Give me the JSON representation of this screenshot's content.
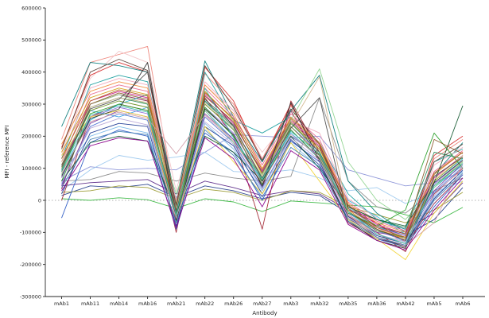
{
  "figure": {
    "background": "#ffffff"
  },
  "chart_data": {
    "type": "line",
    "title": "",
    "xlabel": "Antibody",
    "ylabel": "MFI - reference MFI",
    "legend": "none",
    "grid": false,
    "axis_color": "#262626",
    "zero_line": {
      "value": 0,
      "style": "dotted",
      "color": "#999999"
    },
    "ylim": [
      -300000,
      600000
    ],
    "ytick_step": 100000,
    "yticks": [
      -300000,
      -200000,
      -100000,
      0,
      100000,
      200000,
      300000,
      400000,
      500000,
      600000
    ],
    "categories": [
      "mAb1",
      "mAb11",
      "mAb14",
      "mAb16",
      "mAb21",
      "mAb22",
      "mAb26",
      "mAb27",
      "mAb3",
      "mAb32",
      "mAb35",
      "mAb36",
      "mAb42",
      "mAb5",
      "mAb6"
    ],
    "series": [
      {
        "color": "#3cb843",
        "values": [
          5000,
          0,
          8000,
          2000,
          -25000,
          5000,
          -5000,
          -35000,
          -2000,
          -8000,
          -15000,
          -20000,
          -45000,
          -70000,
          -22000
        ]
      },
      {
        "color": "#8b94d8",
        "values": [
          60000,
          105000,
          95000,
          100000,
          95000,
          150000,
          205000,
          200000,
          195000,
          200000,
          95000,
          70000,
          45000,
          55000,
          90000
        ]
      },
      {
        "color": "#9cc8ee",
        "values": [
          30000,
          95000,
          140000,
          125000,
          135000,
          150000,
          90000,
          85000,
          95000,
          70000,
          30000,
          40000,
          -10000,
          25000,
          60000
        ]
      },
      {
        "color": "#8a8a8a",
        "values": [
          60000,
          65000,
          90000,
          85000,
          60000,
          85000,
          70000,
          60000,
          75000,
          320000,
          60000,
          -20000,
          -40000,
          30000,
          70000
        ]
      },
      {
        "color": "#5e2d8a",
        "values": [
          45000,
          55000,
          60000,
          65000,
          20000,
          60000,
          40000,
          15000,
          30000,
          20000,
          -30000,
          -60000,
          -90000,
          -40000,
          55000
        ]
      },
      {
        "color": "#27408b",
        "values": [
          15000,
          45000,
          40000,
          50000,
          10000,
          45000,
          30000,
          5000,
          25000,
          15000,
          -40000,
          -80000,
          -110000,
          -60000,
          40000
        ]
      },
      {
        "color": "#9a9a30",
        "values": [
          25000,
          30000,
          45000,
          40000,
          5000,
          35000,
          25000,
          0,
          30000,
          25000,
          -20000,
          -45000,
          -70000,
          -30000,
          25000
        ]
      },
      {
        "color": "#ee8378",
        "values": [
          190000,
          430000,
          455000,
          480000,
          -20000,
          395000,
          300000,
          130000,
          295000,
          150000,
          -40000,
          -85000,
          -120000,
          130000,
          190000
        ]
      },
      {
        "color": "#f2c4c8",
        "values": [
          150000,
          380000,
          465000,
          430000,
          30000,
          360000,
          280000,
          150000,
          260000,
          120000,
          -60000,
          -100000,
          -150000,
          90000,
          150000
        ]
      },
      {
        "color": "#d62f2f",
        "values": [
          165000,
          390000,
          430000,
          400000,
          -60000,
          415000,
          310000,
          120000,
          300000,
          140000,
          -30000,
          -70000,
          -130000,
          140000,
          200000
        ]
      },
      {
        "color": "#a22633",
        "values": [
          0,
          260000,
          300000,
          280000,
          -100000,
          320000,
          200000,
          -90000,
          310000,
          150000,
          -50000,
          -100000,
          -160000,
          20000,
          100000
        ]
      },
      {
        "color": "#8b1a4a",
        "values": [
          35000,
          300000,
          330000,
          310000,
          -70000,
          340000,
          230000,
          40000,
          280000,
          120000,
          -70000,
          -120000,
          -140000,
          -10000,
          80000
        ]
      },
      {
        "color": "#0e7d7d",
        "values": [
          230000,
          430000,
          420000,
          400000,
          0,
          435000,
          260000,
          120000,
          280000,
          390000,
          60000,
          -40000,
          -100000,
          80000,
          180000
        ]
      },
      {
        "color": "#1fa0a0",
        "values": [
          130000,
          360000,
          390000,
          370000,
          -30000,
          400000,
          250000,
          210000,
          260000,
          180000,
          20000,
          -60000,
          -90000,
          120000,
          160000
        ]
      },
      {
        "color": "#28b8d8",
        "values": [
          90000,
          250000,
          300000,
          330000,
          -20000,
          310000,
          220000,
          90000,
          240000,
          160000,
          0,
          -50000,
          -105000,
          60000,
          130000
        ]
      },
      {
        "color": "#3da5e0",
        "values": [
          110000,
          280000,
          260000,
          290000,
          -50000,
          280000,
          190000,
          60000,
          210000,
          130000,
          -20000,
          -80000,
          -120000,
          40000,
          110000
        ]
      },
      {
        "color": "#7ab8e8",
        "values": [
          80000,
          200000,
          230000,
          210000,
          -40000,
          240000,
          160000,
          30000,
          180000,
          100000,
          -60000,
          -90000,
          -130000,
          10000,
          90000
        ]
      },
      {
        "color": "#2e5cc5",
        "values": [
          -55000,
          180000,
          220000,
          200000,
          -90000,
          210000,
          150000,
          0,
          185000,
          120000,
          -60000,
          -120000,
          -145000,
          -20000,
          80000
        ]
      },
      {
        "color": "#4f74d2",
        "values": [
          50000,
          230000,
          270000,
          250000,
          -60000,
          260000,
          180000,
          40000,
          200000,
          140000,
          -40000,
          -95000,
          -125000,
          25000,
          105000
        ]
      },
      {
        "color": "#1f3a93",
        "values": [
          20000,
          210000,
          240000,
          230000,
          -80000,
          230000,
          170000,
          20000,
          190000,
          110000,
          -50000,
          -110000,
          -135000,
          5000,
          95000
        ]
      },
      {
        "color": "#7b3fa0",
        "values": [
          45000,
          240000,
          280000,
          260000,
          -50000,
          270000,
          190000,
          50000,
          220000,
          130000,
          -45000,
          -100000,
          -115000,
          30000,
          115000
        ]
      },
      {
        "color": "#9370db",
        "values": [
          70000,
          260000,
          290000,
          270000,
          -30000,
          290000,
          210000,
          70000,
          230000,
          150000,
          -25000,
          -85000,
          -110000,
          50000,
          125000
        ]
      },
      {
        "color": "#c71585",
        "values": [
          95000,
          310000,
          340000,
          320000,
          -40000,
          330000,
          240000,
          90000,
          250000,
          170000,
          -15000,
          -75000,
          -105000,
          70000,
          140000
        ]
      },
      {
        "color": "#e86a92",
        "values": [
          120000,
          330000,
          360000,
          340000,
          -20000,
          350000,
          260000,
          110000,
          270000,
          190000,
          -5000,
          -65000,
          -95000,
          90000,
          155000
        ]
      },
      {
        "color": "#f0a8bc",
        "values": [
          140000,
          350000,
          380000,
          360000,
          0,
          370000,
          280000,
          130000,
          250000,
          210000,
          5000,
          -55000,
          -150000,
          110000,
          165000
        ]
      },
      {
        "color": "#ef8c3b",
        "values": [
          175000,
          340000,
          370000,
          350000,
          -10000,
          360000,
          270000,
          100000,
          260000,
          180000,
          -10000,
          -70000,
          -100000,
          80000,
          150000
        ]
      },
      {
        "color": "#d4a017",
        "values": [
          150000,
          320000,
          350000,
          330000,
          -30000,
          340000,
          250000,
          80000,
          240000,
          160000,
          -30000,
          -90000,
          -120000,
          60000,
          135000
        ]
      },
      {
        "color": "#f2d53c",
        "values": [
          140000,
          260000,
          280000,
          260000,
          -60000,
          230000,
          120000,
          20000,
          180000,
          60000,
          -60000,
          -120000,
          -185000,
          -40000,
          60000
        ]
      },
      {
        "color": "#6b8e23",
        "values": [
          100000,
          280000,
          310000,
          290000,
          -40000,
          300000,
          220000,
          60000,
          230000,
          140000,
          -35000,
          -95000,
          -115000,
          45000,
          120000
        ]
      },
      {
        "color": "#8fd48f",
        "values": [
          80000,
          300000,
          330000,
          300000,
          20000,
          280000,
          180000,
          80000,
          250000,
          410000,
          120000,
          0,
          -60000,
          40000,
          120000
        ]
      },
      {
        "color": "#2ca02c",
        "values": [
          60000,
          270000,
          300000,
          280000,
          -50000,
          290000,
          200000,
          50000,
          220000,
          130000,
          -40000,
          -80000,
          -30000,
          210000,
          100000
        ]
      },
      {
        "color": "#2e8b57",
        "values": [
          90000,
          290000,
          320000,
          300000,
          -20000,
          310000,
          230000,
          70000,
          240000,
          150000,
          -20000,
          -60000,
          -85000,
          150000,
          130000
        ]
      },
      {
        "color": "#145a32",
        "values": [
          60000,
          180000,
          200000,
          185000,
          -40000,
          200000,
          150000,
          60000,
          200000,
          100000,
          -20000,
          -60000,
          -80000,
          55000,
          295000
        ]
      },
      {
        "color": "#8b5a2b",
        "values": [
          110000,
          300000,
          335000,
          315000,
          -30000,
          325000,
          245000,
          85000,
          245000,
          165000,
          -25000,
          -80000,
          -105000,
          190000,
          145000
        ]
      },
      {
        "color": "#5d4037",
        "values": [
          160000,
          400000,
          440000,
          405000,
          -15000,
          420000,
          290000,
          125000,
          285000,
          175000,
          -35000,
          -90000,
          -125000,
          120000,
          175000
        ]
      },
      {
        "color": "#b5651d",
        "values": [
          130000,
          310000,
          345000,
          325000,
          -45000,
          335000,
          255000,
          95000,
          255000,
          175000,
          -15000,
          -85000,
          -115000,
          85000,
          150000
        ]
      },
      {
        "color": "#d2b48c",
        "values": [
          120000,
          290000,
          320000,
          305000,
          -25000,
          305000,
          225000,
          75000,
          235000,
          385000,
          -45000,
          -105000,
          -135000,
          65000,
          140000
        ]
      },
      {
        "color": "#4d4d4d",
        "values": [
          105000,
          285000,
          315000,
          400000,
          -35000,
          315000,
          235000,
          65000,
          225000,
          320000,
          -55000,
          -115000,
          -145000,
          75000,
          135000
        ]
      },
      {
        "color": "#2f2f2f",
        "values": [
          75000,
          255000,
          285000,
          430000,
          -65000,
          285000,
          205000,
          45000,
          305000,
          125000,
          -65000,
          -125000,
          -150000,
          55000,
          125000
        ]
      },
      {
        "color": "#b8a8d8",
        "values": [
          55000,
          225000,
          255000,
          235000,
          -55000,
          245000,
          175000,
          35000,
          195000,
          125000,
          -55000,
          -105000,
          -130000,
          15000,
          105000
        ]
      },
      {
        "color": "#d29ca8",
        "values": [
          85000,
          245000,
          275000,
          255000,
          145000,
          265000,
          185000,
          55000,
          205000,
          135000,
          -45000,
          -115000,
          -140000,
          -70000,
          115000
        ]
      },
      {
        "color": "#40c0b0",
        "values": [
          95000,
          265000,
          295000,
          275000,
          -45000,
          350000,
          195000,
          65000,
          215000,
          145000,
          -35000,
          -105000,
          -135000,
          45000,
          115000
        ]
      },
      {
        "color": "#4682b4",
        "values": [
          40000,
          190000,
          215000,
          205000,
          -70000,
          220000,
          140000,
          10000,
          165000,
          105000,
          -65000,
          -115000,
          -140000,
          0,
          85000
        ]
      },
      {
        "color": "#8b008b",
        "values": [
          30000,
          170000,
          195000,
          185000,
          -85000,
          195000,
          130000,
          -20000,
          155000,
          95000,
          -75000,
          -125000,
          -155000,
          -30000,
          70000
        ]
      }
    ]
  }
}
